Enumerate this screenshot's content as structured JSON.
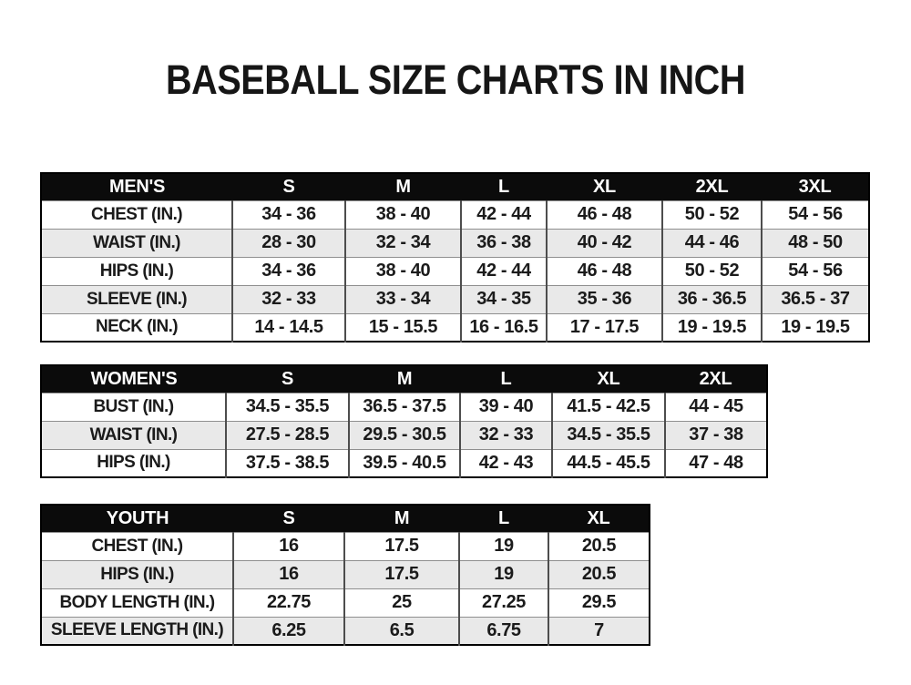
{
  "page": {
    "title": "BASEBALL SIZE CHARTS IN INCH"
  },
  "colors": {
    "header_bg": "#0b0b0b",
    "header_text": "#ffffff",
    "text": "#1b1b1b",
    "row_bg": "#ffffff",
    "row_alt_bg": "#e9e9e9",
    "outer_border": "#000000",
    "column_line": "#4d4d4d",
    "row_line": "#8f8f8f"
  },
  "tables": [
    {
      "name": "mens",
      "header": [
        "MEN'S",
        "S",
        "M",
        "L",
        "XL",
        "2XL",
        "3XL"
      ],
      "rows": [
        [
          "CHEST (IN.)",
          "34 - 36",
          "38 - 40",
          "42 - 44",
          "46 - 48",
          "50 - 52",
          "54 - 56"
        ],
        [
          "WAIST (IN.)",
          "28 - 30",
          "32 - 34",
          "36 - 38",
          "40 - 42",
          "44 - 46",
          "48 - 50"
        ],
        [
          "HIPS (IN.)",
          "34 - 36",
          "38 - 40",
          "42 - 44",
          "46 - 48",
          "50 - 52",
          "54 - 56"
        ],
        [
          "SLEEVE (IN.)",
          "32 - 33",
          "33 - 34",
          "34 - 35",
          "35 - 36",
          "36 - 36.5",
          "36.5 - 37"
        ],
        [
          "NECK (IN.)",
          "14 - 14.5",
          "15 - 15.5",
          "16 - 16.5",
          "17 - 17.5",
          "19 - 19.5",
          "19 - 19.5"
        ]
      ]
    },
    {
      "name": "womens",
      "header": [
        "WOMEN'S",
        "S",
        "M",
        "L",
        "XL",
        "2XL"
      ],
      "rows": [
        [
          "BUST (IN.)",
          "34.5 - 35.5",
          "36.5 - 37.5",
          "39 - 40",
          "41.5 - 42.5",
          "44 - 45"
        ],
        [
          "WAIST (IN.)",
          "27.5 - 28.5",
          "29.5 - 30.5",
          "32 - 33",
          "34.5 - 35.5",
          "37 - 38"
        ],
        [
          "HIPS (IN.)",
          "37.5 - 38.5",
          "39.5 - 40.5",
          "42 - 43",
          "44.5 - 45.5",
          "47 - 48"
        ]
      ]
    },
    {
      "name": "youth",
      "header": [
        "YOUTH",
        "S",
        "M",
        "L",
        "XL"
      ],
      "rows": [
        [
          "CHEST (IN.)",
          "16",
          "17.5",
          "19",
          "20.5"
        ],
        [
          "HIPS (IN.)",
          "16",
          "17.5",
          "19",
          "20.5"
        ],
        [
          "BODY LENGTH (IN.)",
          "22.75",
          "25",
          "27.25",
          "29.5"
        ],
        [
          "SLEEVE LENGTH (IN.)",
          "6.25",
          "6.5",
          "6.75",
          "7"
        ]
      ]
    }
  ]
}
